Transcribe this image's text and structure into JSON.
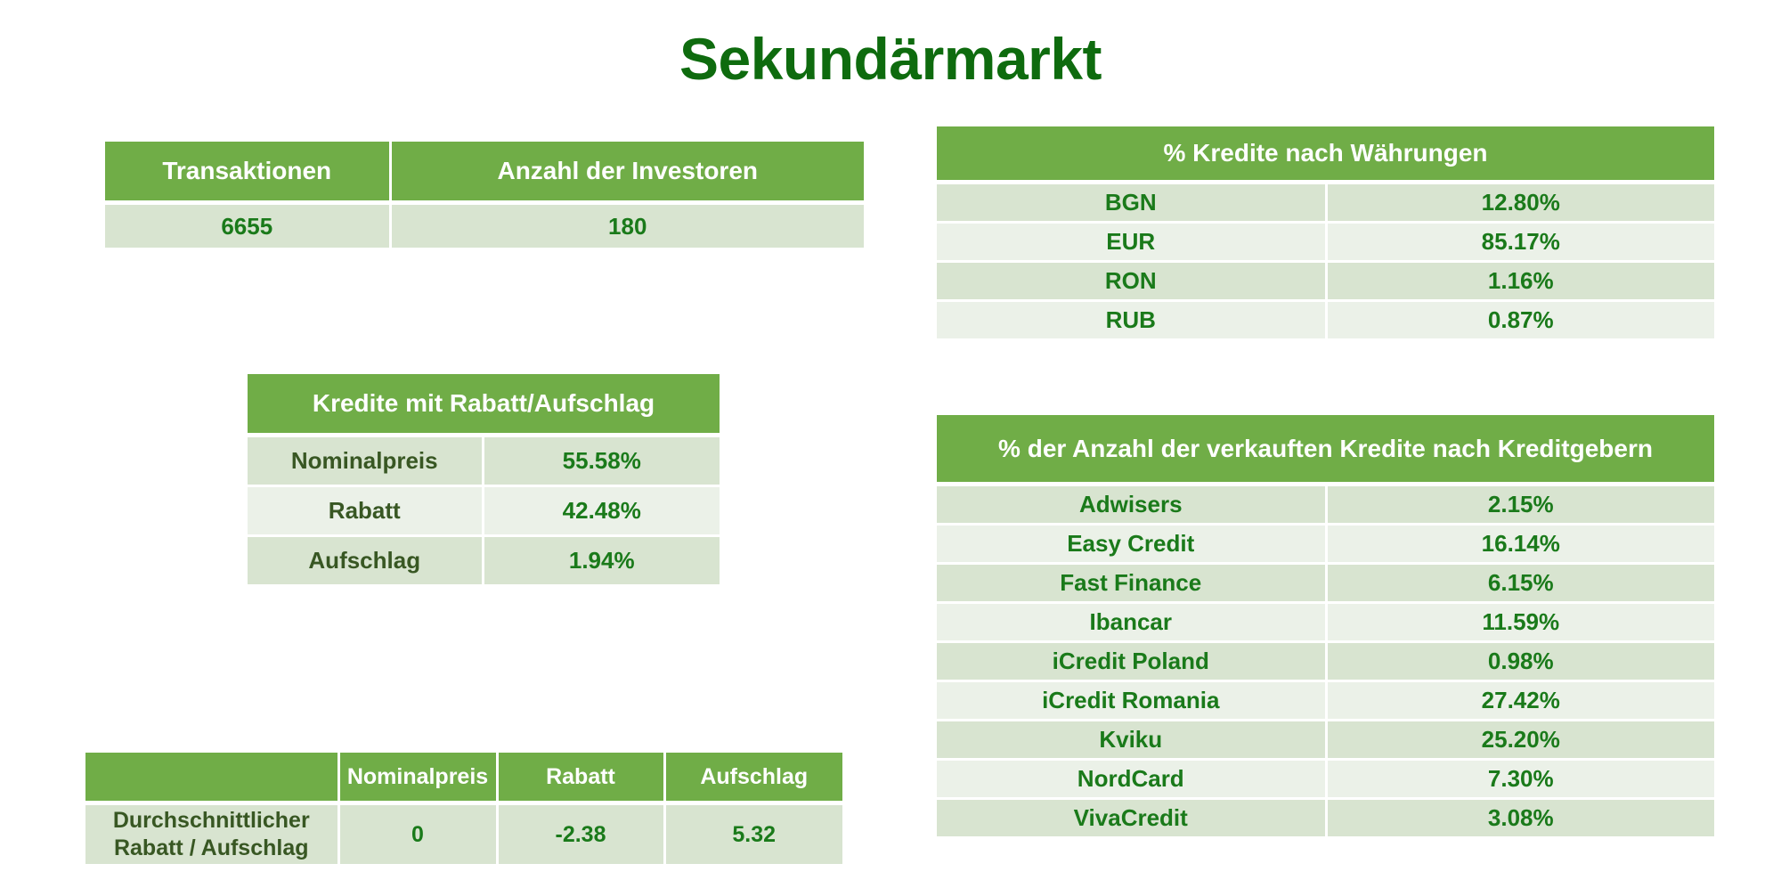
{
  "title": "Sekundärmarkt",
  "summary": {
    "headers": [
      "Transaktionen",
      "Anzahl der Investoren"
    ],
    "values": [
      "6655",
      "180"
    ]
  },
  "discount_table": {
    "header": "Kredite mit Rabatt/Aufschlag",
    "rows": [
      {
        "label": "Nominalpreis",
        "value": "55.58%"
      },
      {
        "label": "Rabatt",
        "value": "42.48%"
      },
      {
        "label": "Aufschlag",
        "value": "1.94%"
      }
    ]
  },
  "average_table": {
    "headers": [
      "",
      "Nominalpreis",
      "Rabatt",
      "Aufschlag"
    ],
    "row_label_line1": "Durchschnittlicher",
    "row_label_line2": "Rabatt / Aufschlag",
    "values": [
      "0",
      "-2.38",
      "5.32"
    ]
  },
  "currency_table": {
    "header": "% Kredite nach Währungen",
    "rows": [
      {
        "label": "BGN",
        "value": "12.80%"
      },
      {
        "label": "EUR",
        "value": "85.17%"
      },
      {
        "label": "RON",
        "value": "1.16%"
      },
      {
        "label": "RUB",
        "value": "0.87%"
      }
    ]
  },
  "lenders_table": {
    "header": "% der Anzahl der verkauften Kredite nach Kreditgebern",
    "rows": [
      {
        "label": "Adwisers",
        "value": "2.15%"
      },
      {
        "label": "Easy Credit",
        "value": "16.14%"
      },
      {
        "label": "Fast Finance",
        "value": "6.15%"
      },
      {
        "label": "Ibancar",
        "value": "11.59%"
      },
      {
        "label": "iCredit Poland",
        "value": "0.98%"
      },
      {
        "label": "iCredit Romania",
        "value": "27.42%"
      },
      {
        "label": "Kviku",
        "value": "25.20%"
      },
      {
        "label": "NordCard",
        "value": "7.30%"
      },
      {
        "label": "VivaCredit",
        "value": "3.08%"
      }
    ]
  },
  "colors": {
    "header_bg": "#70ad47",
    "row_dark": "#d8e4d0",
    "row_light": "#ebf1e8",
    "title": "#0e6b0e",
    "value_text": "#1a7a1a",
    "label_text": "#385723"
  }
}
